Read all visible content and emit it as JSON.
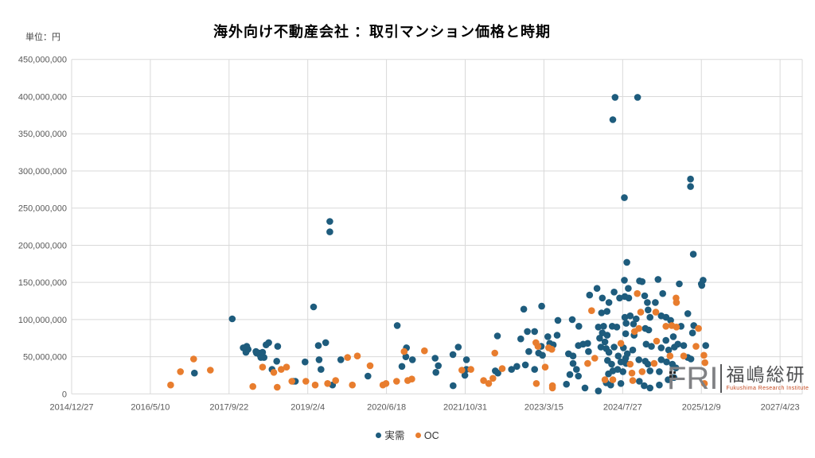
{
  "title": "海外向け不動産会社 ：取引マンション価格と時期",
  "unit_label": "単位：円",
  "legend": [
    {
      "label": "実需",
      "color": "#1e5c7d"
    },
    {
      "label": "OC",
      "color": "#e87d2e"
    }
  ],
  "logo": {
    "letters": "FRI",
    "company": "福嶋総研",
    "subtitle": "Fukushima Research Institute"
  },
  "chart_data": {
    "type": "scatter",
    "title": "海外向け不動産会社 ：取引マンション価格と時期",
    "x_unit": "days since 2014/12/27 (ticks every 500 days)",
    "y_unit": "JPY (points stored in millions of yen)",
    "x_axis": {
      "tick_labels": [
        "2014/12/27",
        "2016/5/10",
        "2017/9/22",
        "2019/2/4",
        "2020/6/18",
        "2021/10/31",
        "2023/3/15",
        "2024/7/27",
        "2025/12/9",
        "2027/4/23"
      ],
      "days_per_tick": 500
    },
    "y_axis": {
      "min": 0,
      "max": 450000000,
      "step": 50000000,
      "tick_labels": [
        "0",
        "50,000,000",
        "100,000,000",
        "150,000,000",
        "200,000,000",
        "250,000,000",
        "300,000,000",
        "350,000,000",
        "400,000,000",
        "450,000,000"
      ]
    },
    "series": [
      {
        "name": "実需",
        "color": "#1e5c7d",
        "points": [
          [
            1020,
            101
          ],
          [
            1121,
            60
          ],
          [
            1107,
            56
          ],
          [
            1171,
            57
          ],
          [
            1192,
            55
          ],
          [
            1205,
            52
          ],
          [
            1222,
            49
          ],
          [
            1090,
            62
          ],
          [
            1112,
            64
          ],
          [
            1174,
            55
          ],
          [
            1197,
            52
          ],
          [
            1213,
            56
          ],
          [
            1202,
            49
          ],
          [
            1235,
            66
          ],
          [
            1252,
            69
          ],
          [
            1309,
            64
          ],
          [
            1303,
            44
          ],
          [
            1273,
            33
          ],
          [
            1407,
            17
          ],
          [
            780,
            28
          ],
          [
            1421,
            17
          ],
          [
            1483,
            43
          ],
          [
            1640,
            232
          ],
          [
            1640,
            218
          ],
          [
            1537,
            117
          ],
          [
            2068,
            92
          ],
          [
            1614,
            69
          ],
          [
            1567,
            65
          ],
          [
            1572,
            46
          ],
          [
            1584,
            33
          ],
          [
            1710,
            46
          ],
          [
            1657,
            12
          ],
          [
            1882,
            24
          ],
          [
            2127,
            62
          ],
          [
            2123,
            50
          ],
          [
            2165,
            46
          ],
          [
            2098,
            37
          ],
          [
            2309,
            48
          ],
          [
            2329,
            38
          ],
          [
            2314,
            29
          ],
          [
            2422,
            53
          ],
          [
            2456,
            63
          ],
          [
            2508,
            46
          ],
          [
            2508,
            33
          ],
          [
            2498,
            25
          ],
          [
            2423,
            11
          ],
          [
            2691,
            31
          ],
          [
            2708,
            28
          ],
          [
            2794,
            33
          ],
          [
            2828,
            37
          ],
          [
            2705,
            78
          ],
          [
            2853,
            74
          ],
          [
            2872,
            114
          ],
          [
            2895,
            84
          ],
          [
            2904,
            57
          ],
          [
            2986,
            118
          ],
          [
            2941,
            84
          ],
          [
            3025,
            77
          ],
          [
            3037,
            68
          ],
          [
            2983,
            64
          ],
          [
            3059,
            66
          ],
          [
            2991,
            52
          ],
          [
            2966,
            55
          ],
          [
            3089,
            99
          ],
          [
            3180,
            100
          ],
          [
            3222,
            91
          ],
          [
            3084,
            79
          ],
          [
            3156,
            54
          ],
          [
            3185,
            51
          ],
          [
            3219,
            65
          ],
          [
            3249,
            67
          ],
          [
            3278,
            68
          ],
          [
            3283,
            57
          ],
          [
            3290,
            133
          ],
          [
            3371,
            129
          ],
          [
            3337,
            142
          ],
          [
            3413,
            123
          ],
          [
            3366,
            109
          ],
          [
            3185,
            41
          ],
          [
            3207,
            33
          ],
          [
            3165,
            26
          ],
          [
            3219,
            24
          ],
          [
            3143,
            13
          ],
          [
            2882,
            39
          ],
          [
            2941,
            33
          ],
          [
            3410,
            27
          ],
          [
            3438,
            31
          ],
          [
            3261,
            8
          ],
          [
            3346,
            4
          ],
          [
            3396,
            15
          ],
          [
            3346,
            90
          ],
          [
            3379,
            91
          ],
          [
            3371,
            82
          ],
          [
            3402,
            79
          ],
          [
            3354,
            75
          ],
          [
            3388,
            70
          ],
          [
            3362,
            63
          ],
          [
            3396,
            61
          ],
          [
            3413,
            56
          ],
          [
            3452,
            399
          ],
          [
            3595,
            399
          ],
          [
            3438,
            369
          ],
          [
            3931,
            289
          ],
          [
            3931,
            279
          ],
          [
            3511,
            264
          ],
          [
            3949,
            188
          ],
          [
            3527,
            177
          ],
          [
            3511,
            153
          ],
          [
            3607,
            152
          ],
          [
            3624,
            151
          ],
          [
            3725,
            154
          ],
          [
            3860,
            148
          ],
          [
            4003,
            146
          ],
          [
            4011,
            153
          ],
          [
            4000,
            148
          ],
          [
            3536,
            142
          ],
          [
            3446,
            137
          ],
          [
            3481,
            129
          ],
          [
            3514,
            131
          ],
          [
            3539,
            129
          ],
          [
            3640,
            132
          ],
          [
            3755,
            135
          ],
          [
            3657,
            123
          ],
          [
            3708,
            123
          ],
          [
            3401,
            111
          ],
          [
            3514,
            103
          ],
          [
            3548,
            105
          ],
          [
            3586,
            101
          ],
          [
            3674,
            103
          ],
          [
            3745,
            105
          ],
          [
            3776,
            103
          ],
          [
            3662,
            113
          ],
          [
            3434,
            91
          ],
          [
            3463,
            90
          ],
          [
            3522,
            95
          ],
          [
            3569,
            94
          ],
          [
            3644,
            88
          ],
          [
            3666,
            86
          ],
          [
            3805,
            99
          ],
          [
            3573,
            79
          ],
          [
            3519,
            81
          ],
          [
            3446,
            63
          ],
          [
            3505,
            62
          ],
          [
            3564,
            59
          ],
          [
            3530,
            54
          ],
          [
            3472,
            51
          ],
          [
            3649,
            67
          ],
          [
            3683,
            64
          ],
          [
            3745,
            62
          ],
          [
            3792,
            59
          ],
          [
            3829,
            63
          ],
          [
            3851,
            67
          ],
          [
            3775,
            72
          ],
          [
            3822,
            77
          ],
          [
            3404,
            45
          ],
          [
            3430,
            40
          ],
          [
            3489,
            43
          ],
          [
            3519,
            48
          ],
          [
            3522,
            41
          ],
          [
            3603,
            46
          ],
          [
            3644,
            44
          ],
          [
            3661,
            40
          ],
          [
            3745,
            46
          ],
          [
            3779,
            43
          ],
          [
            3816,
            40
          ],
          [
            3838,
            35
          ],
          [
            3468,
            33
          ],
          [
            3502,
            30
          ],
          [
            3674,
            31
          ],
          [
            3733,
            30
          ],
          [
            3424,
            12
          ],
          [
            3489,
            14
          ],
          [
            3606,
            17
          ],
          [
            3637,
            11
          ],
          [
            3674,
            8
          ],
          [
            3733,
            12
          ],
          [
            3789,
            19
          ],
          [
            3826,
            22
          ],
          [
            3914,
            108
          ],
          [
            3871,
            91
          ],
          [
            3952,
            92
          ],
          [
            3944,
            82
          ],
          [
            3888,
            65
          ],
          [
            4028,
            65
          ],
          [
            3914,
            49
          ],
          [
            3934,
            47
          ]
        ]
      },
      {
        "name": "OC",
        "color": "#e87d2e",
        "points": [
          [
            629,
            12
          ],
          [
            691,
            30
          ],
          [
            775,
            47
          ],
          [
            881,
            32
          ],
          [
            1151,
            10
          ],
          [
            1213,
            36
          ],
          [
            1284,
            29
          ],
          [
            1331,
            33
          ],
          [
            1365,
            36
          ],
          [
            1306,
            9
          ],
          [
            1399,
            17
          ],
          [
            1488,
            17
          ],
          [
            1677,
            18
          ],
          [
            1547,
            12
          ],
          [
            1626,
            14
          ],
          [
            1753,
            49
          ],
          [
            1815,
            51
          ],
          [
            1896,
            38
          ],
          [
            1783,
            12
          ],
          [
            1977,
            12
          ],
          [
            1997,
            14
          ],
          [
            2064,
            17
          ],
          [
            2112,
            57
          ],
          [
            2135,
            18
          ],
          [
            2161,
            20
          ],
          [
            2241,
            58
          ],
          [
            2479,
            32
          ],
          [
            2536,
            33
          ],
          [
            2617,
            18
          ],
          [
            2649,
            14
          ],
          [
            2676,
            21
          ],
          [
            2688,
            55
          ],
          [
            2735,
            34
          ],
          [
            2949,
            69
          ],
          [
            2962,
            64
          ],
          [
            3030,
            62
          ],
          [
            3050,
            60
          ],
          [
            3008,
            36
          ],
          [
            2952,
            14
          ],
          [
            3054,
            11
          ],
          [
            3054,
            8
          ],
          [
            3323,
            48
          ],
          [
            3278,
            41
          ],
          [
            3303,
            112
          ],
          [
            3593,
            135
          ],
          [
            3615,
            110
          ],
          [
            3711,
            110
          ],
          [
            3839,
            129
          ],
          [
            3842,
            123
          ],
          [
            3603,
            88
          ],
          [
            3576,
            84
          ],
          [
            3775,
            91
          ],
          [
            3812,
            92
          ],
          [
            3842,
            90
          ],
          [
            3489,
            68
          ],
          [
            3716,
            71
          ],
          [
            3548,
            40
          ],
          [
            3559,
            28
          ],
          [
            3700,
            41
          ],
          [
            3801,
            51
          ],
          [
            3388,
            19
          ],
          [
            3438,
            19
          ],
          [
            3564,
            18
          ],
          [
            3624,
            30
          ],
          [
            3982,
            88
          ],
          [
            3966,
            64
          ],
          [
            3888,
            51
          ],
          [
            4016,
            52
          ],
          [
            4023,
            42
          ],
          [
            4019,
            14
          ]
        ]
      }
    ]
  }
}
